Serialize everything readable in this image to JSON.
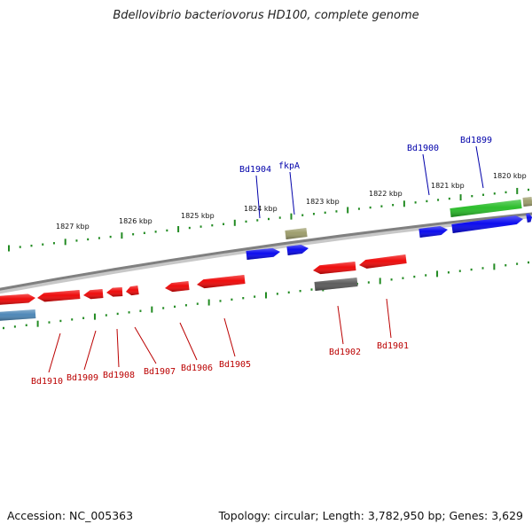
{
  "title": "Bdellovibrio bacteriovorus HD100, complete genome",
  "footer": {
    "accession": "Accession: NC_005363",
    "summary": "Topology: circular; Length: 3,782,950 bp; Genes: 3,629"
  },
  "colors": {
    "backbone": "#808080",
    "tick": "#228B22",
    "forward_gene": "#0000ee",
    "reverse_gene": "#ee0000",
    "trna": "#22bb22",
    "pseudo": "#999966",
    "rrna": "#555555",
    "ncrna": "#4682b4",
    "forward_label": "#0000aa",
    "reverse_label": "#bb0000"
  },
  "scale_labels": [
    "1827 kbp",
    "1826 kbp",
    "1825 kbp",
    "1824 kbp",
    "1823 kbp",
    "1822 kbp",
    "1821 kbp",
    "1820 kbp"
  ],
  "forward_labels": [
    "Bd1904",
    "fkpA",
    "Bd1900",
    "Bd1899"
  ],
  "reverse_labels": [
    "Bd1910",
    "Bd1909",
    "Bd1908",
    "Bd1907",
    "Bd1906",
    "Bd1905",
    "Bd1902",
    "Bd1901"
  ]
}
